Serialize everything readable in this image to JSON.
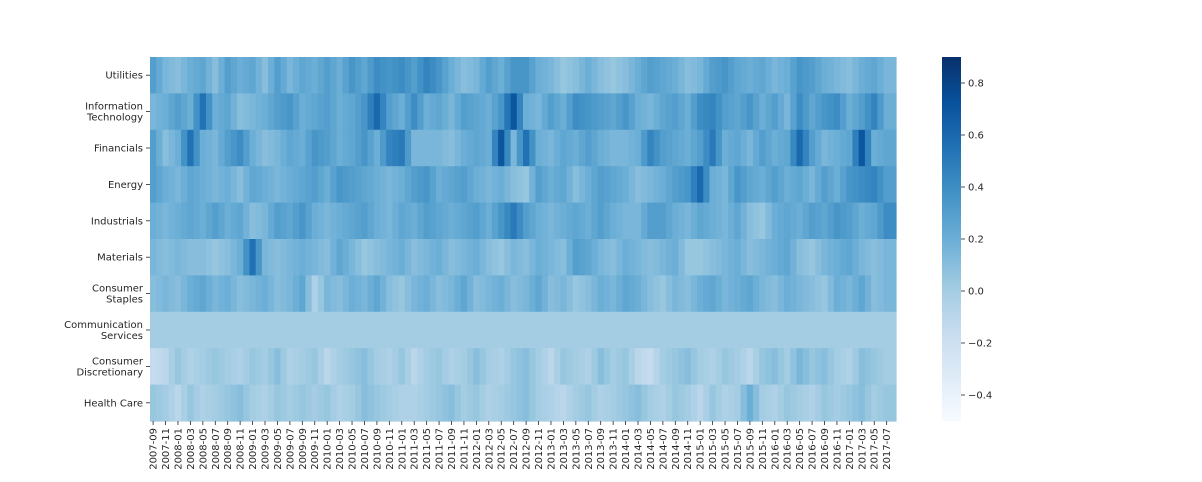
{
  "chart_data": {
    "type": "heatmap",
    "title": "",
    "xlabel": "",
    "ylabel": "",
    "rows": [
      [
        "Utilities"
      ],
      [
        "Information",
        "Technology"
      ],
      [
        "Financials"
      ],
      [
        "Energy"
      ],
      [
        "Industrials"
      ],
      [
        "Materials"
      ],
      [
        "Consumer",
        "Staples"
      ],
      [
        "Communication",
        "Services"
      ],
      [
        "Consumer",
        "Discretionary"
      ],
      [
        "Health Care"
      ]
    ],
    "x_labels": [
      "2007-09",
      "2007-11",
      "2008-01",
      "2008-03",
      "2008-05",
      "2008-07",
      "2008-09",
      "2008-11",
      "2009-01",
      "2009-03",
      "2009-05",
      "2009-07",
      "2009-09",
      "2009-11",
      "2010-01",
      "2010-03",
      "2010-05",
      "2010-07",
      "2010-09",
      "2010-11",
      "2011-01",
      "2011-03",
      "2011-05",
      "2011-07",
      "2011-09",
      "2011-11",
      "2012-01",
      "2012-03",
      "2012-05",
      "2012-07",
      "2012-09",
      "2012-11",
      "2013-01",
      "2013-03",
      "2013-05",
      "2013-07",
      "2013-09",
      "2013-11",
      "2014-01",
      "2014-03",
      "2014-05",
      "2014-07",
      "2014-09",
      "2014-11",
      "2015-01",
      "2015-03",
      "2015-05",
      "2015-07",
      "2015-09",
      "2015-11",
      "2016-01",
      "2016-03",
      "2016-05",
      "2016-07",
      "2016-09",
      "2016-11",
      "2017-01",
      "2017-03",
      "2017-05",
      "2017-07"
    ],
    "color_range": [
      -0.5,
      0.9
    ],
    "colormap": "Blues",
    "colorbar_ticks": [
      {
        "value": 0.8,
        "label": "0.8"
      },
      {
        "value": 0.6,
        "label": "0.6"
      },
      {
        "value": 0.4,
        "label": "0.4"
      },
      {
        "value": 0.2,
        "label": "0.2"
      },
      {
        "value": 0.0,
        "label": "0.0"
      },
      {
        "value": -0.2,
        "label": "−0.2"
      },
      {
        "value": -0.4,
        "label": "−0.4"
      }
    ],
    "values": [
      [
        0.3,
        0.15,
        0.1,
        0.2,
        0.25,
        0.1,
        0.3,
        0.2,
        0.25,
        0.1,
        0.3,
        0.15,
        0.25,
        0.2,
        0.3,
        0.2,
        0.35,
        0.25,
        0.4,
        0.35,
        0.4,
        0.3,
        0.45,
        0.35,
        0.2,
        0.1,
        0.15,
        0.3,
        0.2,
        0.35,
        0.35,
        0.2,
        0.15,
        0.05,
        0.1,
        0.2,
        0.1,
        0.05,
        0.1,
        0.2,
        0.3,
        0.25,
        0.2,
        0.1,
        0.15,
        0.3,
        0.35,
        0.25,
        0.2,
        0.25,
        0.15,
        0.2,
        0.35,
        0.3,
        0.2,
        0.15,
        0.1,
        0.2,
        0.25,
        0.15
      ],
      [
        0.15,
        0.2,
        0.3,
        0.2,
        0.55,
        0.2,
        0.25,
        0.1,
        0.15,
        0.2,
        0.3,
        0.35,
        0.2,
        0.25,
        0.3,
        0.2,
        0.25,
        0.35,
        0.6,
        0.3,
        0.2,
        0.4,
        0.2,
        0.25,
        0.15,
        0.3,
        0.25,
        0.2,
        0.35,
        0.7,
        0.2,
        0.15,
        0.3,
        0.2,
        0.4,
        0.35,
        0.3,
        0.25,
        0.35,
        0.2,
        0.15,
        0.25,
        0.3,
        0.2,
        0.4,
        0.45,
        0.3,
        0.25,
        0.35,
        0.2,
        0.3,
        0.15,
        0.4,
        0.25,
        0.35,
        0.4,
        0.2,
        0.3,
        0.45,
        0.2
      ],
      [
        0.3,
        0.1,
        0.2,
        0.55,
        0.2,
        0.15,
        0.3,
        0.4,
        0.2,
        0.1,
        0.15,
        0.25,
        0.2,
        0.35,
        0.3,
        0.2,
        0.25,
        0.35,
        0.2,
        0.45,
        0.5,
        0.15,
        0.15,
        0.15,
        0.1,
        0.2,
        0.25,
        0.2,
        0.7,
        0.15,
        0.55,
        0.2,
        0.15,
        0.25,
        0.2,
        0.3,
        0.2,
        0.15,
        0.15,
        0.2,
        0.45,
        0.3,
        0.25,
        0.2,
        0.3,
        0.5,
        0.2,
        0.25,
        0.15,
        0.3,
        0.2,
        0.25,
        0.6,
        0.3,
        0.15,
        0.2,
        0.25,
        0.7,
        0.2,
        0.25
      ],
      [
        0.3,
        0.2,
        0.15,
        0.25,
        0.2,
        0.15,
        0.2,
        0.1,
        0.25,
        0.2,
        0.15,
        0.2,
        0.25,
        0.3,
        0.2,
        0.35,
        0.3,
        0.25,
        0.2,
        0.15,
        0.2,
        0.3,
        0.35,
        0.2,
        0.25,
        0.3,
        0.2,
        0.15,
        0.2,
        0.1,
        0.05,
        0.3,
        0.2,
        0.25,
        0.1,
        0.2,
        0.3,
        0.25,
        0.2,
        0.1,
        0.15,
        0.2,
        0.3,
        0.35,
        0.6,
        0.2,
        0.15,
        0.35,
        0.25,
        0.2,
        0.3,
        0.2,
        0.25,
        0.15,
        0.3,
        0.2,
        0.35,
        0.4,
        0.45,
        0.3
      ],
      [
        0.2,
        0.15,
        0.2,
        0.25,
        0.2,
        0.3,
        0.2,
        0.25,
        0.1,
        0.15,
        0.3,
        0.25,
        0.35,
        0.2,
        0.15,
        0.2,
        0.25,
        0.3,
        0.2,
        0.15,
        0.25,
        0.2,
        0.3,
        0.25,
        0.2,
        0.25,
        0.3,
        0.2,
        0.35,
        0.5,
        0.3,
        0.2,
        0.15,
        0.2,
        0.25,
        0.2,
        0.3,
        0.2,
        0.15,
        0.15,
        0.3,
        0.3,
        0.2,
        0.15,
        0.25,
        0.2,
        0.15,
        0.25,
        0.1,
        0.05,
        0.2,
        0.25,
        0.2,
        0.3,
        0.25,
        0.35,
        0.3,
        0.2,
        0.25,
        0.4
      ],
      [
        0.15,
        0.1,
        0.15,
        0.1,
        0.1,
        0.05,
        0.1,
        0.2,
        0.55,
        0.15,
        0.1,
        0.15,
        0.2,
        0.15,
        0.1,
        0.25,
        0.15,
        0.05,
        0.1,
        0.15,
        0.2,
        0.1,
        0.15,
        0.2,
        0.1,
        0.15,
        0.2,
        0.1,
        0.05,
        0.15,
        0.1,
        0.2,
        0.15,
        0.1,
        0.3,
        0.25,
        0.15,
        0.1,
        0.2,
        0.15,
        0.1,
        0.15,
        0.2,
        0.05,
        0.05,
        0.1,
        0.15,
        0.2,
        0.1,
        0.15,
        0.2,
        0.25,
        0.1,
        0.05,
        0.15,
        0.2,
        0.25,
        0.15,
        0.1,
        0.15
      ],
      [
        0.1,
        0.15,
        0.1,
        0.2,
        0.25,
        0.15,
        0.2,
        0.1,
        0.15,
        0.2,
        0.1,
        0.15,
        0.25,
        -0.05,
        0.15,
        0.1,
        0.2,
        0.15,
        0.25,
        0.1,
        0.05,
        0.15,
        0.2,
        0.1,
        0.15,
        0.25,
        0.1,
        0.15,
        0.2,
        0.1,
        0.15,
        0.25,
        0.1,
        0.15,
        0.05,
        0.1,
        0.2,
        0.15,
        0.25,
        0.2,
        0.1,
        0.05,
        0.15,
        0.1,
        0.2,
        0.25,
        0.15,
        0.2,
        0.25,
        0.15,
        0.1,
        0.2,
        0.15,
        0.1,
        0.05,
        0.2,
        0.15,
        0.25,
        0.1,
        0.15
      ],
      [
        0.0,
        0.0,
        0.0,
        0.0,
        0.0,
        0.0,
        0.0,
        0.0,
        0.0,
        0.0,
        0.0,
        0.0,
        0.0,
        0.0,
        0.0,
        0.0,
        0.0,
        0.0,
        0.0,
        0.0,
        0.0,
        0.0,
        0.0,
        0.0,
        0.0,
        0.0,
        0.0,
        0.0,
        0.0,
        0.0,
        0.0,
        0.0,
        0.0,
        0.0,
        0.0,
        0.0,
        0.0,
        0.0,
        0.0,
        0.0,
        0.0,
        0.0,
        0.0,
        0.0,
        0.0,
        0.0,
        0.0,
        0.0,
        0.0,
        0.0,
        0.0,
        0.0,
        0.0,
        0.0,
        0.0,
        0.0,
        0.0,
        0.0,
        0.0,
        0.0
      ],
      [
        -0.15,
        -0.1,
        0.05,
        -0.05,
        0.0,
        0.05,
        0.0,
        -0.05,
        0.05,
        0.0,
        0.1,
        -0.05,
        0.0,
        0.05,
        -0.1,
        0.0,
        0.05,
        0.1,
        0.0,
        -0.05,
        0.05,
        -0.1,
        0.0,
        0.05,
        -0.05,
        0.0,
        0.1,
        0.0,
        -0.05,
        0.05,
        0.1,
        0.0,
        -0.1,
        0.05,
        0.0,
        -0.05,
        0.1,
        0.0,
        0.05,
        -0.1,
        -0.15,
        0.0,
        0.05,
        0.1,
        0.0,
        -0.05,
        0.05,
        0.0,
        -0.1,
        0.05,
        0.1,
        0.0,
        0.15,
        0.05,
        0.1,
        0.0,
        -0.05,
        0.1,
        0.05,
        0.0
      ],
      [
        0.05,
        0.0,
        -0.1,
        0.05,
        -0.05,
        0.0,
        0.05,
        0.1,
        0.0,
        -0.05,
        0.05,
        0.0,
        0.05,
        0.0,
        0.05,
        -0.05,
        0.0,
        0.1,
        0.05,
        0.0,
        -0.05,
        -0.05,
        0.0,
        0.05,
        0.1,
        0.0,
        0.05,
        -0.05,
        0.0,
        0.05,
        0.1,
        0.0,
        -0.05,
        -0.1,
        0.0,
        0.05,
        -0.05,
        0.0,
        0.05,
        0.1,
        0.0,
        -0.05,
        0.05,
        0.0,
        -0.1,
        0.05,
        -0.05,
        0.0,
        0.2,
        0.0,
        -0.05,
        0.05,
        0.0,
        -0.05,
        0.05,
        0.0,
        0.05,
        0.1,
        0.0,
        0.05
      ]
    ]
  }
}
